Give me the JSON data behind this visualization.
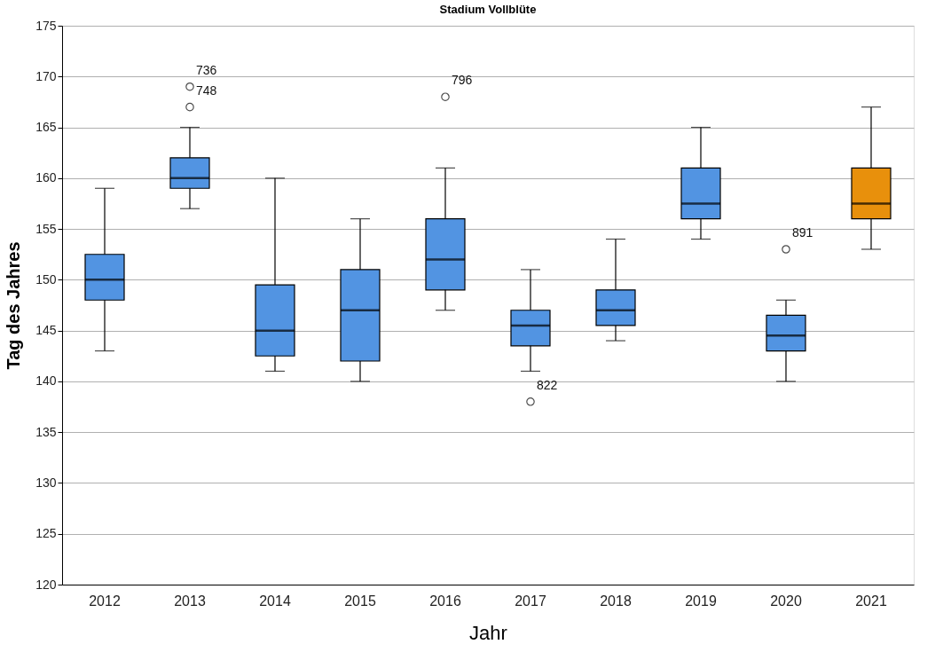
{
  "chart_data": {
    "type": "box",
    "title": "Stadium Vollblüte",
    "xlabel": "Jahr",
    "ylabel": "Tag des Jahres",
    "categories": [
      "2012",
      "2013",
      "2014",
      "2015",
      "2016",
      "2017",
      "2018",
      "2019",
      "2020",
      "2021"
    ],
    "boxes": [
      {
        "low": 143,
        "q1": 148,
        "median": 150,
        "q3": 152.5,
        "high": 159
      },
      {
        "low": 157,
        "q1": 159,
        "median": 160,
        "q3": 162,
        "high": 165,
        "outliers": [
          169,
          167
        ]
      },
      {
        "low": 141,
        "q1": 142.5,
        "median": 145,
        "q3": 149.5,
        "high": 160
      },
      {
        "low": 140,
        "q1": 142,
        "median": 147,
        "q3": 151,
        "high": 156
      },
      {
        "low": 147,
        "q1": 149,
        "median": 152,
        "q3": 156,
        "high": 161,
        "outliers": [
          168
        ]
      },
      {
        "low": 141,
        "q1": 143.5,
        "median": 145.5,
        "q3": 147,
        "high": 151,
        "outliers": [
          138
        ]
      },
      {
        "low": 144,
        "q1": 145.5,
        "median": 147,
        "q3": 149,
        "high": 154
      },
      {
        "low": 154,
        "q1": 156,
        "median": 157.5,
        "q3": 161,
        "high": 165
      },
      {
        "low": 140,
        "q1": 143,
        "median": 144.5,
        "q3": 146.5,
        "high": 148,
        "outliers": [
          153
        ]
      },
      {
        "low": 153,
        "q1": 156,
        "median": 157.5,
        "q3": 161,
        "high": 167
      }
    ],
    "colors": [
      "#5294e2",
      "#5294e2",
      "#5294e2",
      "#5294e2",
      "#5294e2",
      "#5294e2",
      "#5294e2",
      "#5294e2",
      "#5294e2",
      "#e8900c"
    ],
    "ylim": [
      120,
      175
    ],
    "yticks": [
      120,
      125,
      130,
      135,
      140,
      145,
      150,
      155,
      160,
      165,
      170,
      175
    ],
    "grid": "y",
    "annotations": [
      "736",
      "748",
      "796",
      "822",
      "891"
    ]
  }
}
